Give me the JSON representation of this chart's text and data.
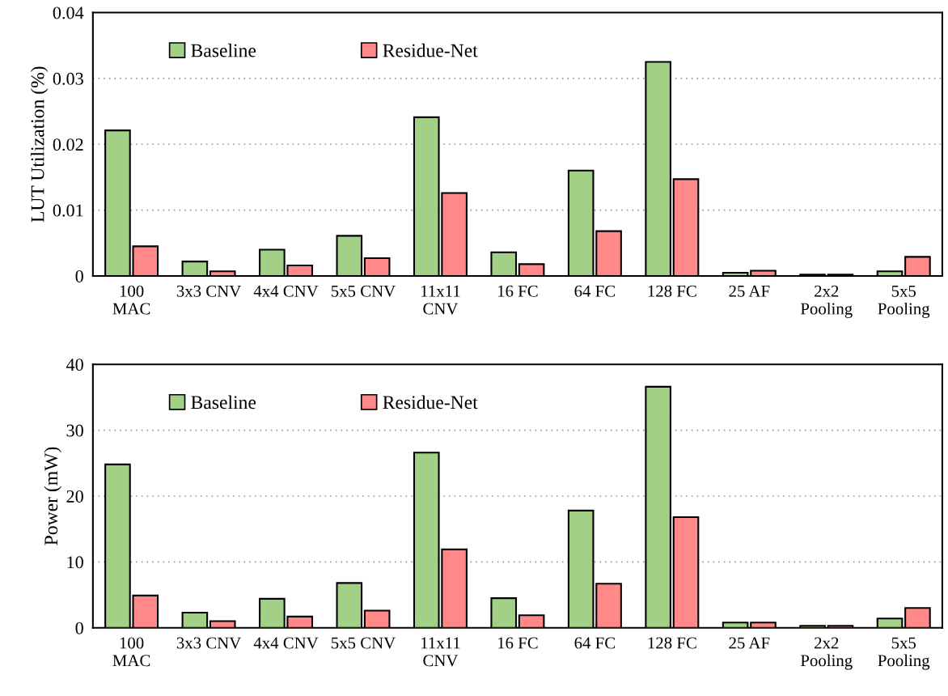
{
  "chart_data": [
    {
      "type": "bar",
      "ylabel": "LUT Utilization (%)",
      "categories": [
        "100\nMAC",
        "3x3 CNV",
        "4x4 CNV",
        "5x5 CNV",
        "11x11\nCNV",
        "16 FC",
        "64 FC",
        "128 FC",
        "25 AF",
        "2x2\nPooling",
        "5x5\nPooling"
      ],
      "series": [
        {
          "name": "Baseline",
          "color": "#a2d086",
          "values": [
            0.0221,
            0.0022,
            0.004,
            0.0061,
            0.0241,
            0.0036,
            0.016,
            0.0325,
            0.0005,
            0.0002,
            0.0007
          ]
        },
        {
          "name": "Residue-Net",
          "color": "#ff8989",
          "values": [
            0.0045,
            0.0007,
            0.0016,
            0.0027,
            0.0126,
            0.0018,
            0.0068,
            0.0147,
            0.0008,
            0.0002,
            0.0029
          ]
        }
      ],
      "ylim": [
        0,
        0.04
      ],
      "yticks": [
        0,
        {
          "value": 0.01,
          "label": "0.01"
        },
        {
          "value": 0.02,
          "label": "0.02"
        },
        {
          "value": 0.03,
          "label": "0.03"
        },
        {
          "value": 0.04,
          "label": "0.04"
        }
      ],
      "grid": "y",
      "legend": "top left"
    },
    {
      "type": "bar",
      "ylabel": "Power (mW)",
      "categories": [
        "100\nMAC",
        "3x3 CNV",
        "4x4 CNV",
        "5x5 CNV",
        "11x11\nCNV",
        "16 FC",
        "64 FC",
        "128 FC",
        "25 AF",
        "2x2\nPooling",
        "5x5\nPooling"
      ],
      "series": [
        {
          "name": "Baseline",
          "color": "#a2d086",
          "values": [
            24.8,
            2.3,
            4.4,
            6.8,
            26.6,
            4.5,
            17.8,
            36.6,
            0.8,
            0.3,
            1.4
          ]
        },
        {
          "name": "Residue-Net",
          "color": "#ff8989",
          "values": [
            4.9,
            1.0,
            1.7,
            2.6,
            11.9,
            1.9,
            6.7,
            16.8,
            0.8,
            0.3,
            3.0
          ]
        }
      ],
      "ylim": [
        0,
        40
      ],
      "yticks": [
        0,
        10,
        20,
        30,
        40
      ],
      "grid": "y",
      "legend": "top left"
    }
  ]
}
